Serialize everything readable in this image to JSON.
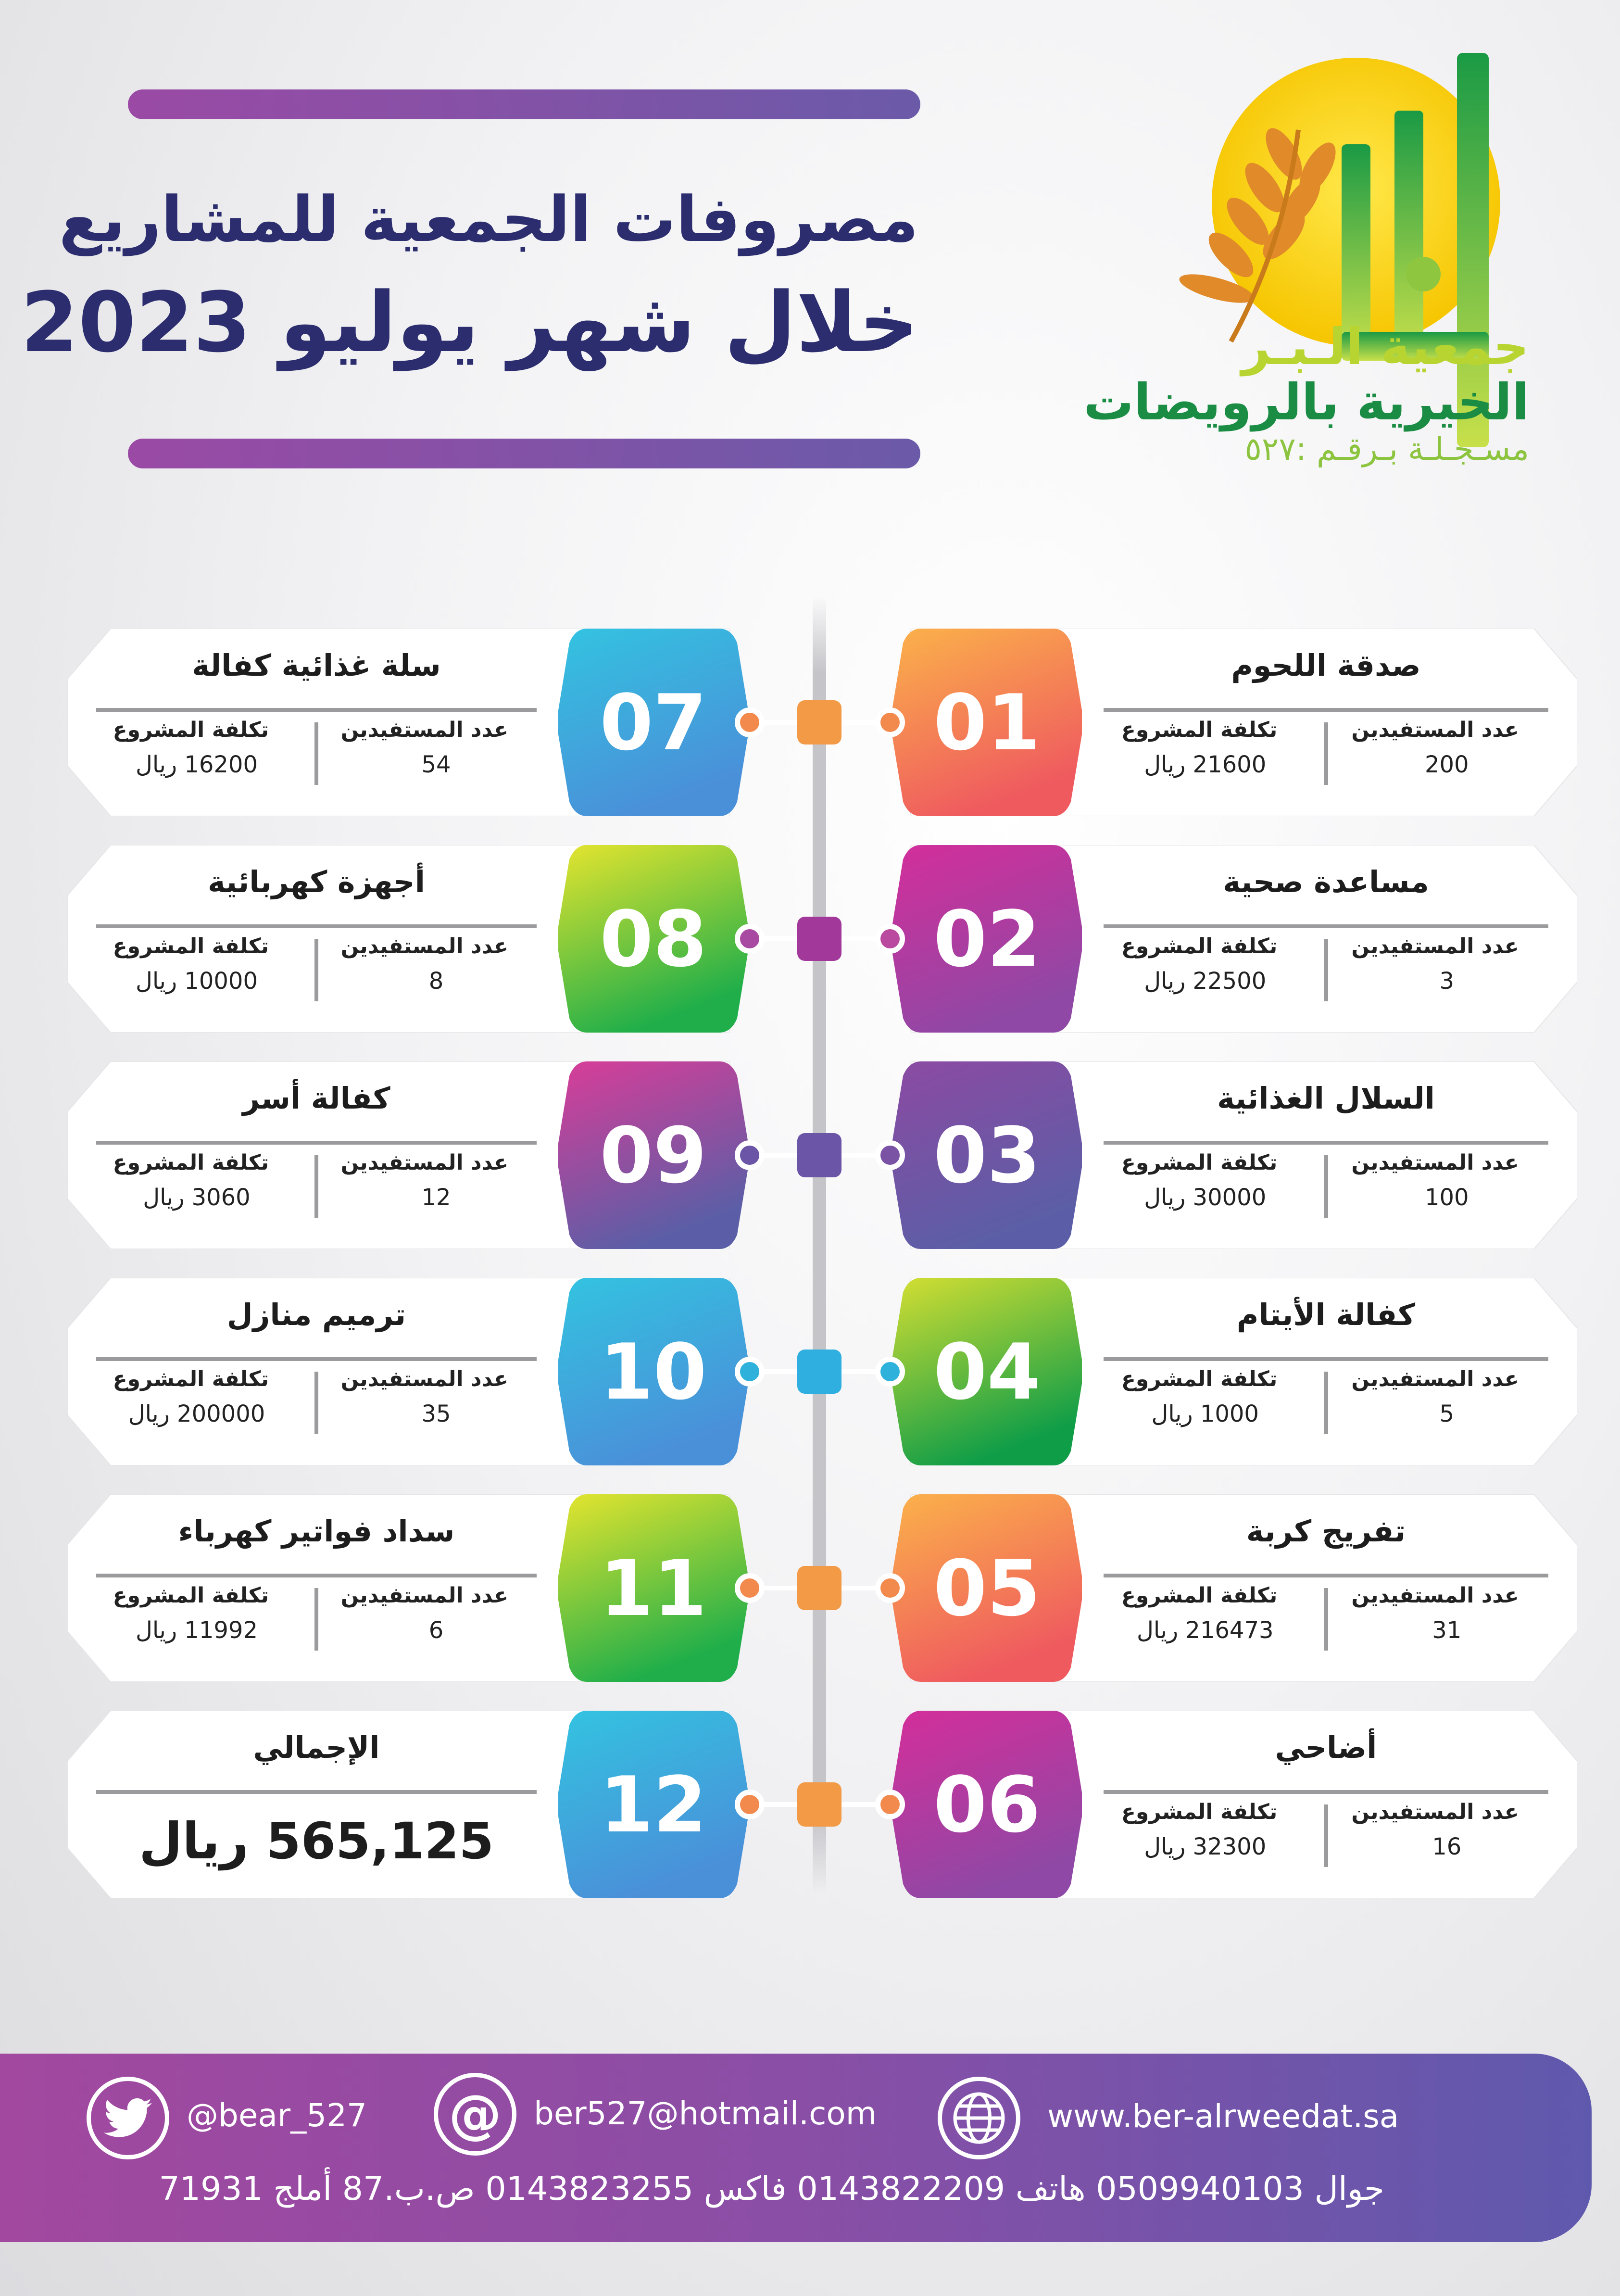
{
  "header": {
    "title_line1": "مصروفات الجمعية للمشاريع",
    "title_line2": "خلال شهر يوليو 2023"
  },
  "logo": {
    "line1": "جمعية الـبـر",
    "line2": "الخيرية بالرويضات",
    "line3": "مسـجـلـة بـرقـم :٥٢٧"
  },
  "labels": {
    "beneficiaries": "عدد المستفيدين",
    "cost": "تكلفة المشروع"
  },
  "projects": [
    {
      "num": "01",
      "title": "صدقة اللحوم",
      "beneficiaries": "200",
      "cost": "21600 ريال"
    },
    {
      "num": "02",
      "title": "مساعدة صحية",
      "beneficiaries": "3",
      "cost": "22500 ريال"
    },
    {
      "num": "03",
      "title": "السلال الغذائية",
      "beneficiaries": "100",
      "cost": "30000 ريال"
    },
    {
      "num": "04",
      "title": "كفالة الأيتام",
      "beneficiaries": "5",
      "cost": "1000 ريال"
    },
    {
      "num": "05",
      "title": "تفريج كربة",
      "beneficiaries": "31",
      "cost": "216473 ريال"
    },
    {
      "num": "06",
      "title": "أضاحي",
      "beneficiaries": "16",
      "cost": "32300 ريال"
    },
    {
      "num": "07",
      "title": "سلة غذائية كفالة",
      "beneficiaries": "54",
      "cost": "16200 ريال"
    },
    {
      "num": "08",
      "title": "أجهزة كهربائية",
      "beneficiaries": "8",
      "cost": "10000 ريال"
    },
    {
      "num": "09",
      "title": "كفالة أسر",
      "beneficiaries": "12",
      "cost": "3060 ريال"
    },
    {
      "num": "10",
      "title": "ترميم منازل",
      "beneficiaries": "35",
      "cost": "200000 ريال"
    },
    {
      "num": "11",
      "title": "سداد فواتير كهرباء",
      "beneficiaries": "6",
      "cost": "11992 ريال"
    }
  ],
  "total": {
    "num": "12",
    "title": "الإجمالي",
    "value": "565,125 ريال"
  },
  "palette": {
    "orange": [
      "#fbb24a",
      "#ef5a5f"
    ],
    "magenta": [
      "#d42e9a",
      "#8f48a5"
    ],
    "purple": [
      "#8c4aa3",
      "#5b5ea6"
    ],
    "green": [
      "#d5df32",
      "#0f9d48"
    ],
    "cyan": [
      "#33c3e0",
      "#4a90d9"
    ],
    "limegreen": [
      "#e6e52e",
      "#1fae4a"
    ],
    "pink": [
      "#d93d98",
      "#5b5ea6"
    ],
    "header_text": "#2b2d6e"
  },
  "footer": {
    "twitter": "@bear_527",
    "email": "ber527@hotmail.com",
    "website": "www.ber-alrweedat.sa",
    "contact_line": "جوال 0509940103 هاتف 0143822209 فاكس 0143823255 ص.ب.87 أملج 71931",
    "icons": [
      "twitter-icon",
      "email-icon",
      "globe-icon"
    ]
  }
}
